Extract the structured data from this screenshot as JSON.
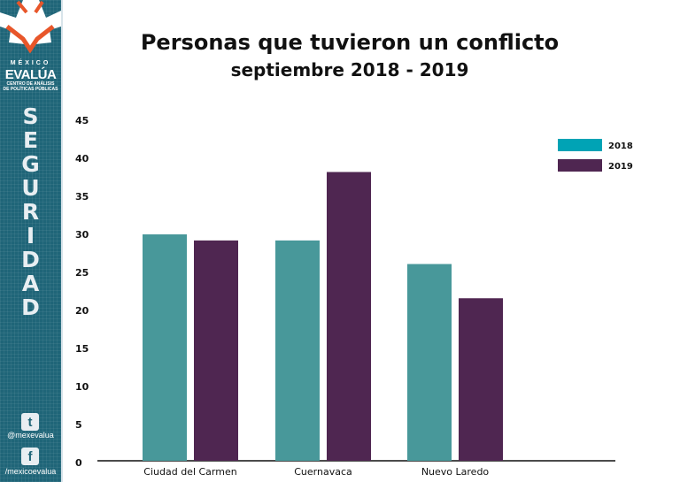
{
  "sidebar": {
    "brand_top": "MÉXICO",
    "brand_name": "EVALÚA",
    "brand_sub1": "CENTRO DE ANÁLISIS",
    "brand_sub2": "DE POLÍTICAS PÚBLICAS",
    "section": "SEGURIDAD",
    "twitter_handle": "@mexevalua",
    "facebook_handle": "/mexicoevalua",
    "color": "#1f6578"
  },
  "chart_data": {
    "type": "bar",
    "title": "Personas que tuvieron un conflicto",
    "subtitle": "septiembre 2018 - 2019",
    "categories": [
      "Ciudad del Carmen",
      "Cuernavaca",
      "Nuevo Laredo"
    ],
    "series": [
      {
        "name": "2018",
        "values": [
          30.0,
          29.2,
          26.1
        ],
        "color": "#48989a",
        "legend_color": "#00a3b5"
      },
      {
        "name": "2019",
        "values": [
          29.2,
          38.2,
          21.6
        ],
        "color": "#4f2651",
        "legend_color": "#4f2651"
      }
    ],
    "yticks": [
      0,
      5,
      10,
      15,
      20,
      25,
      30,
      35,
      40,
      45
    ],
    "ylim": [
      0,
      45
    ],
    "xlabel": "",
    "ylabel": "",
    "grid": false,
    "legend_position": "top-right"
  }
}
